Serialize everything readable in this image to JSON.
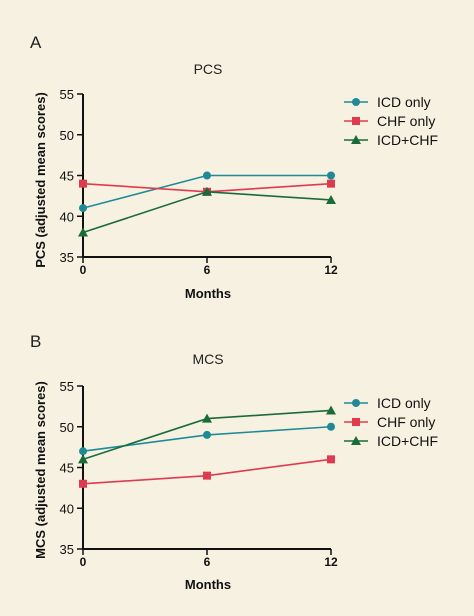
{
  "colors": {
    "background": "#f7f1e2",
    "icd_only": "#1f8a96",
    "chf_only": "#e03a4e",
    "icd_chf": "#1b6b3a",
    "axis": "#111111"
  },
  "chart_data": [
    {
      "panel": "A",
      "type": "line",
      "title": "PCS",
      "xlabel": "Months",
      "ylabel": "PCS  (adjusted mean scores)",
      "x": [
        0,
        6,
        12
      ],
      "ylim": [
        35,
        55
      ],
      "yticks": [
        35,
        40,
        45,
        50,
        55
      ],
      "grid": false,
      "legend": "right",
      "series": [
        {
          "name": "ICD only",
          "marker": "circle",
          "color": "#1f8a96",
          "values": [
            41,
            45,
            45
          ]
        },
        {
          "name": "CHF only",
          "marker": "square",
          "color": "#e03a4e",
          "values": [
            44,
            43,
            44
          ]
        },
        {
          "name": "ICD+CHF",
          "marker": "triangle",
          "color": "#1b6b3a",
          "values": [
            38,
            43,
            42
          ]
        }
      ]
    },
    {
      "panel": "B",
      "type": "line",
      "title": "MCS",
      "xlabel": "Months",
      "ylabel": "MCS (adjusted mean scores)",
      "x": [
        0,
        6,
        12
      ],
      "ylim": [
        35,
        55
      ],
      "yticks": [
        35,
        40,
        45,
        50,
        55
      ],
      "grid": false,
      "legend": "right",
      "series": [
        {
          "name": "ICD only",
          "marker": "circle",
          "color": "#1f8a96",
          "values": [
            47,
            49,
            50
          ]
        },
        {
          "name": "CHF only",
          "marker": "square",
          "color": "#e03a4e",
          "values": [
            43,
            44,
            46
          ]
        },
        {
          "name": "ICD+CHF",
          "marker": "triangle",
          "color": "#1b6b3a",
          "values": [
            46,
            51,
            52
          ]
        }
      ]
    }
  ]
}
